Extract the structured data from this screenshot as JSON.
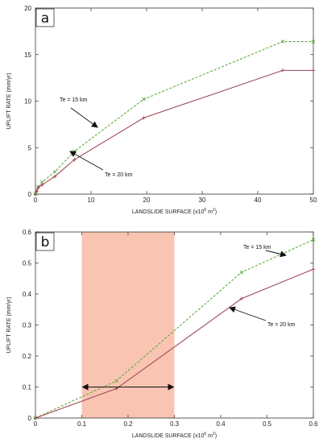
{
  "chart_data": [
    {
      "type": "line",
      "panel_label": "a",
      "xlabel_main": "LANDSLIDE SURFACE (x10",
      "xlabel_sup": "6",
      "xlabel_end": " m",
      "xlabel_sup2": "2",
      "xlabel_close": ")",
      "ylabel": "UPLIFT RATE (mm/yr)",
      "xlim": [
        0,
        50
      ],
      "ylim": [
        0,
        20
      ],
      "xticks": [
        "0",
        "10",
        "20",
        "30",
        "40",
        "50"
      ],
      "yticks": [
        "0",
        "5",
        "10",
        "15",
        "20"
      ],
      "series": [
        {
          "name": "Te = 15 km",
          "color": "#5cab3c",
          "dash": true,
          "x": [
            0,
            0.2,
            0.5,
            1.2,
            3.5,
            7,
            19.5,
            44.5,
            50
          ],
          "y": [
            0,
            0.35,
            0.8,
            1.3,
            2.4,
            4.6,
            10.2,
            16.4,
            16.4
          ]
        },
        {
          "name": "Te = 20 km",
          "color": "#a04856",
          "dash": false,
          "x": [
            0,
            0.2,
            0.5,
            1.2,
            3.5,
            7,
            19.5,
            44.5,
            50
          ],
          "y": [
            0,
            0.3,
            0.7,
            1.0,
            1.9,
            3.7,
            8.2,
            13.3,
            13.3
          ]
        }
      ],
      "annotations": [
        {
          "text": "Te = 15 km",
          "series": 0
        },
        {
          "text": "Te = 20 km",
          "series": 1
        }
      ]
    },
    {
      "type": "line",
      "panel_label": "b",
      "xlabel_main": "LANDSLIDE SURFACE (x10",
      "xlabel_sup": "6",
      "xlabel_end": " m",
      "xlabel_sup2": "2",
      "xlabel_close": ")",
      "ylabel": "UPLIFT RATE (mm/yr)",
      "xlim": [
        0,
        0.6
      ],
      "ylim": [
        0,
        0.6
      ],
      "xticks": [
        "0",
        "0.1",
        "0.2",
        "0.3",
        "0.4",
        "0.5",
        "0.6"
      ],
      "yticks": [
        "0",
        "0.1",
        "0.2",
        "0.3",
        "0.4",
        "0.5",
        "0.6"
      ],
      "shaded_range": [
        0.1,
        0.3
      ],
      "shade_color": "#f9c4b2",
      "range_arrow_y": 0.1,
      "series": [
        {
          "name": "Te = 15 km",
          "color": "#5cab3c",
          "dash": true,
          "x": [
            0,
            0.175,
            0.445,
            0.6
          ],
          "y": [
            0,
            0.12,
            0.47,
            0.575
          ]
        },
        {
          "name": "Te = 20 km",
          "color": "#a04856",
          "dash": false,
          "x": [
            0,
            0.175,
            0.445,
            0.6
          ],
          "y": [
            0,
            0.095,
            0.385,
            0.48
          ]
        }
      ],
      "annotations": [
        {
          "text": "Te = 15 km",
          "series": 0
        },
        {
          "text": "Te = 20 km",
          "series": 1
        }
      ]
    }
  ]
}
